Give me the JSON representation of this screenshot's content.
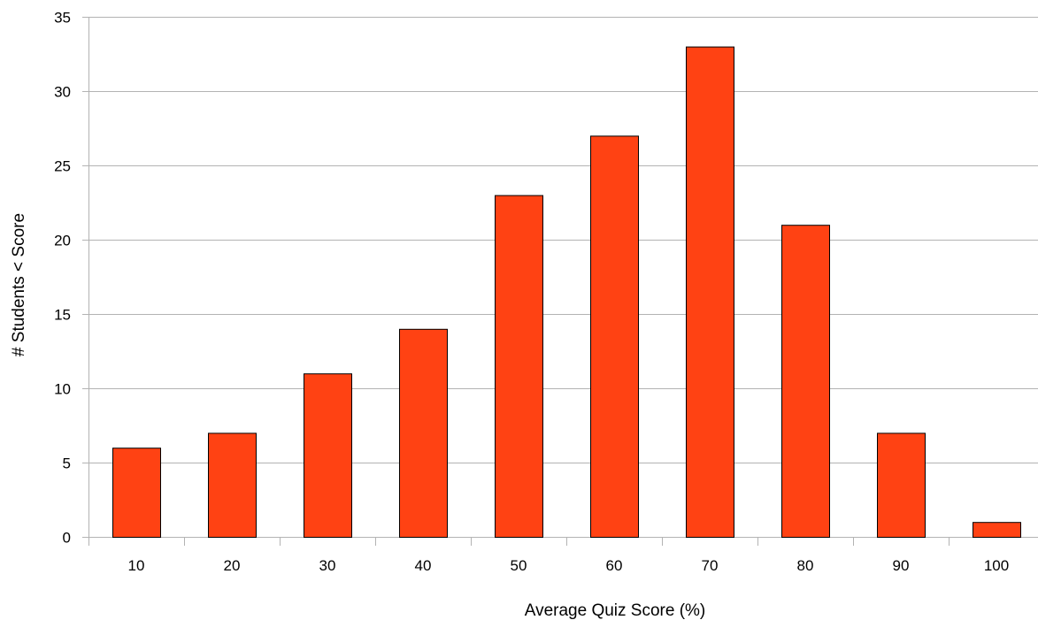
{
  "chart_data": {
    "type": "bar",
    "title": "",
    "xlabel": "Average Quiz Score (%)",
    "ylabel": "# Students < Score",
    "categories": [
      "10",
      "20",
      "30",
      "40",
      "50",
      "60",
      "70",
      "80",
      "90",
      "100"
    ],
    "values": [
      6,
      7,
      11,
      14,
      23,
      27,
      33,
      21,
      7,
      1
    ],
    "ylim": [
      0,
      35
    ],
    "yticks": [
      0,
      5,
      10,
      15,
      20,
      25,
      30,
      35
    ],
    "grid": true,
    "legend": "none",
    "colors": {
      "bar_fill": "#ff4213",
      "bar_stroke": "#000000",
      "grid": "#b3b3b3",
      "axis": "#b3b3b3"
    }
  }
}
